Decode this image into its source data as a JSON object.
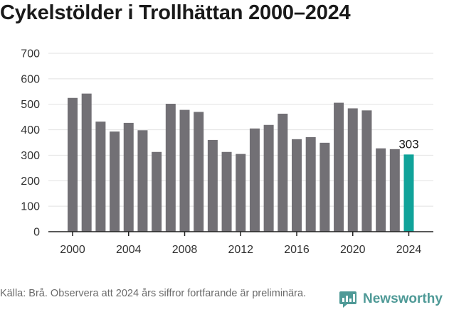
{
  "chart_data": {
    "type": "bar",
    "title": "Cykelstölder i Trollhättan 2000–2024",
    "xlabel": "",
    "ylabel": "",
    "ylim": [
      0,
      700
    ],
    "yticks": [
      0,
      100,
      200,
      300,
      400,
      500,
      600,
      700
    ],
    "xticks": [
      "2000",
      "2004",
      "2008",
      "2012",
      "2016",
      "2020",
      "2024"
    ],
    "categories": [
      "2000",
      "2001",
      "2002",
      "2003",
      "2004",
      "2005",
      "2006",
      "2007",
      "2008",
      "2009",
      "2010",
      "2011",
      "2012",
      "2013",
      "2014",
      "2015",
      "2016",
      "2017",
      "2018",
      "2019",
      "2020",
      "2021",
      "2022",
      "2023",
      "2024"
    ],
    "values": [
      525,
      542,
      432,
      393,
      427,
      398,
      313,
      502,
      478,
      470,
      360,
      313,
      305,
      405,
      419,
      463,
      363,
      371,
      349,
      506,
      484,
      476,
      327,
      324,
      303
    ],
    "highlight": {
      "category": "2024",
      "label": "303"
    },
    "grid": true,
    "colors": {
      "bar": "#727075",
      "highlight": "#10a39a",
      "grid": "#e2e2e2",
      "axis": "#222222"
    }
  },
  "source_note": "Källa: Brå. Observera att 2024 års siffror fortfarande är preliminära.",
  "brand": {
    "name": "Newsworthy",
    "icon": "newsworthy-logo-icon",
    "color": "#4f9a97"
  }
}
